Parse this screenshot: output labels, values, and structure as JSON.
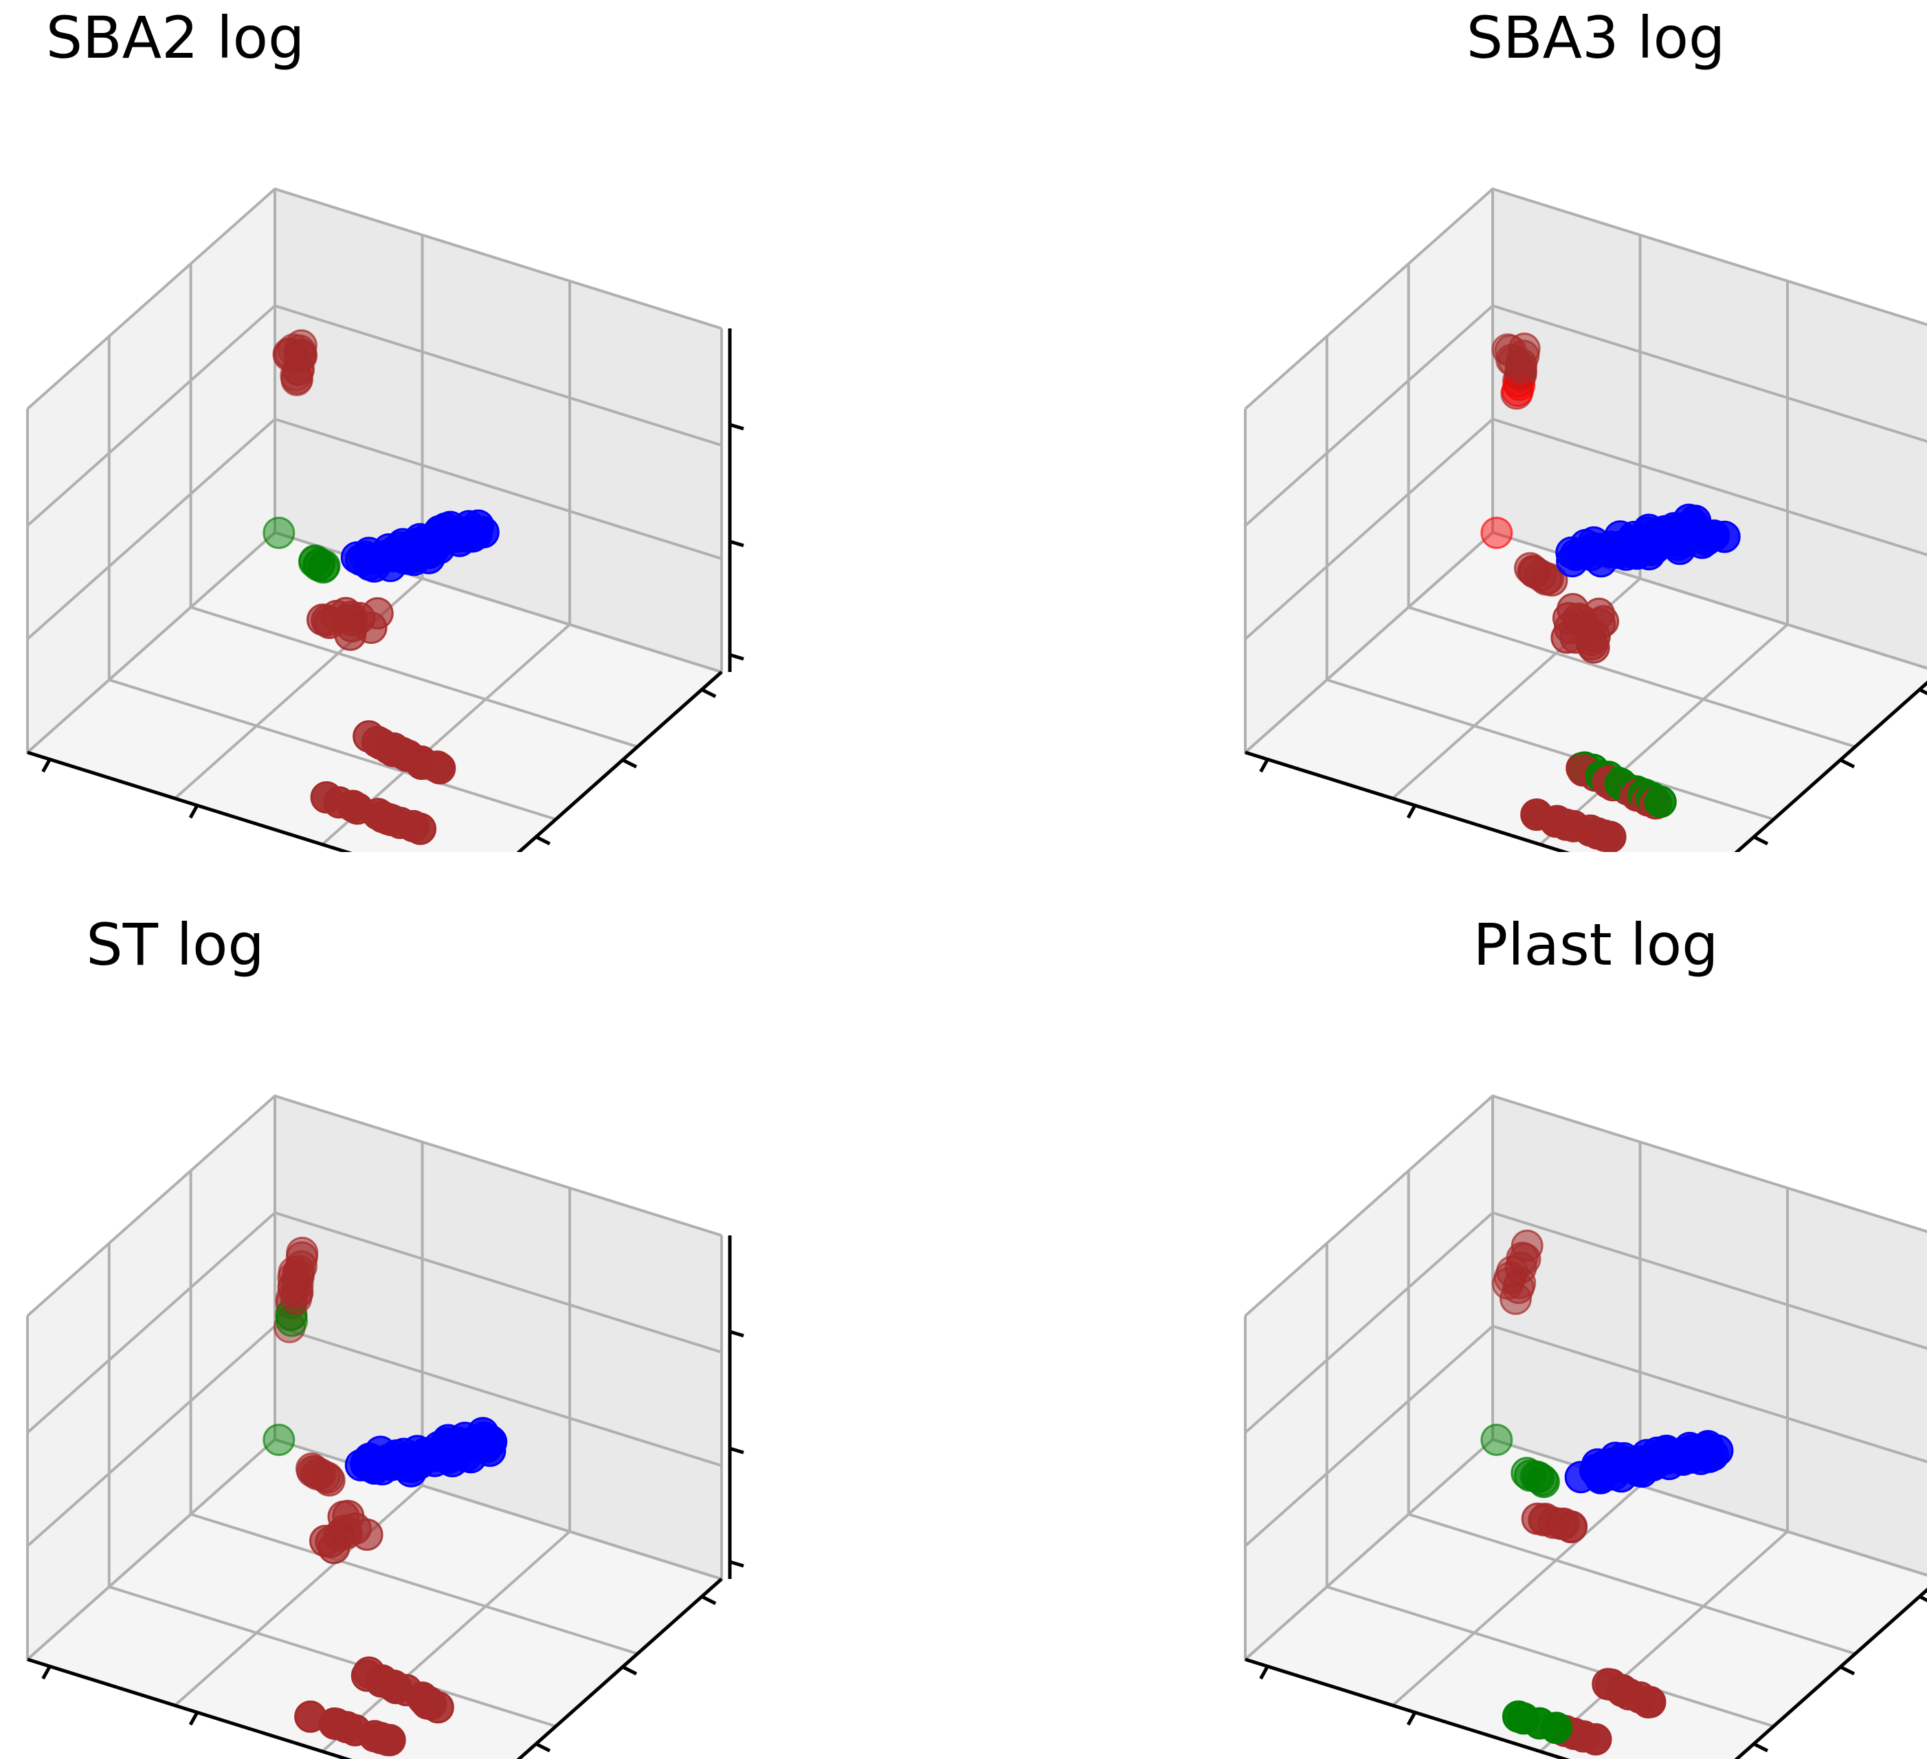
{
  "figure": {
    "colors": {
      "blue": "#0000ff",
      "brown": "#a52a2a",
      "green": "#008000",
      "red": "#ff0000",
      "pane_left": "#f2f2f2",
      "pane_right": "#e9e9e9",
      "pane_floor": "#f5f5f5",
      "grid": "#b0b0b0",
      "axis": "#000000"
    }
  },
  "chart_data": [
    {
      "type": "scatter",
      "projection": "3d",
      "title": "SBA2 log",
      "grid": true,
      "tick_labels": false,
      "series": [
        {
          "color": "blue",
          "points": [
            {
              "center": [
                0.72,
                0.3,
                0.7
              ],
              "n": 60,
              "spread": [
                0.16,
                0.07,
                0.16
              ],
              "line": true
            }
          ]
        },
        {
          "color": "brown",
          "points": [
            {
              "center": [
                0.12,
                0.88,
                0.62
              ],
              "n": 10,
              "spread": [
                0.015,
                0.015,
                0.07
              ],
              "line": true
            },
            {
              "center": [
                0.05,
                0.98,
                0.55
              ],
              "n": 4,
              "spread": [
                0.01,
                0.01,
                0.02
              ]
            },
            {
              "center": [
                0.4,
                0.58,
                0.17
              ],
              "n": 12,
              "spread": [
                0.05,
                0.04,
                0.02
              ]
            },
            {
              "center": [
                0.72,
                0.22,
                0.15
              ],
              "n": 14,
              "spread": [
                0.1,
                0.04,
                0.02
              ],
              "line": true
            },
            {
              "center": [
                0.72,
                0.1,
                0.05
              ],
              "n": 12,
              "spread": [
                0.1,
                0.015,
                0.01
              ],
              "line": true
            }
          ]
        },
        {
          "color": "green",
          "points": [
            {
              "center": [
                0.22,
                0.78,
                0.14
              ],
              "n": 6,
              "spread": [
                0.03,
                0.03,
                0.02
              ],
              "line": true
            },
            {
              "center": [
                0.02,
                0.98,
                0.02
              ],
              "n": 1,
              "spread": [
                0,
                0,
                0
              ]
            }
          ]
        }
      ]
    },
    {
      "type": "scatter",
      "projection": "3d",
      "title": "SBA3 log",
      "grid": true,
      "tick_labels": false,
      "series": [
        {
          "color": "blue",
          "points": [
            {
              "center": [
                0.74,
                0.3,
                0.72
              ],
              "n": 70,
              "spread": [
                0.18,
                0.08,
                0.16
              ],
              "line": true
            }
          ]
        },
        {
          "color": "brown",
          "points": [
            {
              "center": [
                0.13,
                0.88,
                0.6
              ],
              "n": 9,
              "spread": [
                0.015,
                0.015,
                0.08
              ],
              "line": true
            },
            {
              "center": [
                0.05,
                0.98,
                0.55
              ],
              "n": 4,
              "spread": [
                0.01,
                0.01,
                0.02
              ]
            },
            {
              "center": [
                0.24,
                0.76,
                0.13
              ],
              "n": 8,
              "spread": [
                0.04,
                0.03,
                0.02
              ],
              "line": true
            },
            {
              "center": [
                0.42,
                0.6,
                0.15
              ],
              "n": 14,
              "spread": [
                0.05,
                0.04,
                0.03
              ]
            },
            {
              "center": [
                0.72,
                0.22,
                0.05
              ],
              "n": 12,
              "spread": [
                0.09,
                0.03,
                0.01
              ],
              "line": true
            },
            {
              "center": [
                0.7,
                0.05,
                0.04
              ],
              "n": 10,
              "spread": [
                0.09,
                0.01,
                0.01
              ],
              "line": true
            }
          ]
        },
        {
          "color": "green",
          "points": [
            {
              "center": [
                0.72,
                0.22,
                0.06
              ],
              "n": 10,
              "spread": [
                0.09,
                0.03,
                0.01
              ],
              "line": true
            }
          ]
        },
        {
          "color": "red",
          "points": [
            {
              "center": [
                0.02,
                0.98,
                0.02
              ],
              "n": 1,
              "spread": [
                0,
                0,
                0
              ]
            },
            {
              "center": [
                0.12,
                0.88,
                0.55
              ],
              "n": 2,
              "spread": [
                0.01,
                0.01,
                0.02
              ]
            }
          ]
        }
      ]
    },
    {
      "type": "scatter",
      "projection": "3d",
      "title": "ST log",
      "grid": true,
      "tick_labels": false,
      "series": [
        {
          "color": "blue",
          "points": [
            {
              "center": [
                0.73,
                0.3,
                0.7
              ],
              "n": 70,
              "spread": [
                0.18,
                0.07,
                0.15
              ],
              "line": true
            }
          ]
        },
        {
          "color": "brown",
          "points": [
            {
              "center": [
                0.12,
                0.88,
                0.6
              ],
              "n": 10,
              "spread": [
                0.015,
                0.015,
                0.08
              ],
              "line": true
            },
            {
              "center": [
                0.05,
                0.98,
                0.45
              ],
              "n": 8,
              "spread": [
                0.01,
                0.01,
                0.09
              ],
              "line": true
            },
            {
              "center": [
                0.22,
                0.78,
                0.13
              ],
              "n": 8,
              "spread": [
                0.04,
                0.03,
                0.02
              ],
              "line": true
            },
            {
              "center": [
                0.4,
                0.58,
                0.15
              ],
              "n": 10,
              "spread": [
                0.04,
                0.04,
                0.03
              ]
            },
            {
              "center": [
                0.72,
                0.22,
                0.06
              ],
              "n": 14,
              "spread": [
                0.1,
                0.03,
                0.01
              ],
              "line": true
            },
            {
              "center": [
                0.7,
                0.06,
                0.04
              ],
              "n": 9,
              "spread": [
                0.09,
                0.01,
                0.01
              ],
              "line": true
            }
          ]
        },
        {
          "color": "green",
          "points": [
            {
              "center": [
                0.05,
                0.98,
                0.4
              ],
              "n": 2,
              "spread": [
                0.005,
                0.005,
                0.02
              ]
            },
            {
              "center": [
                0.02,
                0.98,
                0.02
              ],
              "n": 1,
              "spread": [
                0,
                0,
                0
              ]
            }
          ]
        }
      ]
    },
    {
      "type": "scatter",
      "projection": "3d",
      "title": "Plast log",
      "grid": true,
      "tick_labels": false,
      "series": [
        {
          "color": "blue",
          "points": [
            {
              "center": [
                0.75,
                0.28,
                0.7
              ],
              "n": 55,
              "spread": [
                0.17,
                0.06,
                0.14
              ],
              "line": true
            }
          ]
        },
        {
          "color": "brown",
          "points": [
            {
              "center": [
                0.13,
                0.88,
                0.62
              ],
              "n": 7,
              "spread": [
                0.02,
                0.015,
                0.09
              ],
              "line": true
            },
            {
              "center": [
                0.05,
                0.98,
                0.5
              ],
              "n": 3,
              "spread": [
                0.01,
                0.01,
                0.02
              ]
            },
            {
              "center": [
                0.38,
                0.58,
                0.18
              ],
              "n": 8,
              "spread": [
                0.06,
                0.03,
                0.03
              ],
              "line": true
            },
            {
              "center": [
                0.74,
                0.22,
                0.06
              ],
              "n": 8,
              "spread": [
                0.06,
                0.02,
                0.01
              ],
              "line": true
            },
            {
              "center": [
                0.72,
                0.05,
                0.04
              ],
              "n": 4,
              "spread": [
                0.04,
                0.01,
                0.01
              ],
              "line": true
            }
          ]
        },
        {
          "color": "green",
          "points": [
            {
              "center": [
                0.22,
                0.78,
                0.12
              ],
              "n": 6,
              "spread": [
                0.04,
                0.03,
                0.02
              ],
              "line": true
            },
            {
              "center": [
                0.02,
                0.98,
                0.02
              ],
              "n": 1,
              "spread": [
                0,
                0,
                0
              ]
            },
            {
              "center": [
                0.62,
                0.05,
                0.04
              ],
              "n": 4,
              "spread": [
                0.05,
                0.01,
                0.01
              ],
              "line": true
            }
          ]
        }
      ]
    }
  ]
}
